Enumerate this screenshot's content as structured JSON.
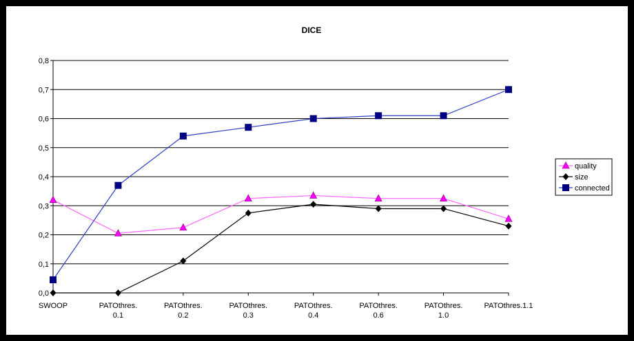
{
  "chart_data": {
    "type": "line",
    "title": "DICE",
    "xlabel": "",
    "ylabel": "",
    "categories": [
      "SWOOP",
      "PATOthres.\n0.1",
      "PATOthres.\n0.2",
      "PATOthres.\n0.3",
      "PATOthres.\n0.4",
      "PATOthres.\n0.6",
      "PATOthres.\n1.0",
      "PATOthres.1.1"
    ],
    "ylim": [
      0,
      0.8
    ],
    "yticks": [
      "0,0",
      "0,1",
      "0,2",
      "0,3",
      "0,4",
      "0,5",
      "0,6",
      "0,7",
      "0,8"
    ],
    "grid": true,
    "legend_position": "right",
    "series": [
      {
        "name": "quality",
        "color": "#ff00ff",
        "line_color": "#ff66ff",
        "marker": "triangle",
        "values": [
          0.32,
          0.205,
          0.225,
          0.325,
          0.335,
          0.325,
          0.325,
          0.255
        ]
      },
      {
        "name": "size",
        "color": "#000000",
        "line_color": "#000000",
        "marker": "diamond",
        "values": [
          0.0,
          0.0,
          0.11,
          0.275,
          0.305,
          0.29,
          0.29,
          0.23
        ]
      },
      {
        "name": "connected",
        "color": "#000080",
        "line_color": "#2a3fbf",
        "marker": "square",
        "values": [
          0.045,
          0.37,
          0.54,
          0.57,
          0.6,
          0.61,
          0.61,
          0.7
        ]
      }
    ]
  }
}
